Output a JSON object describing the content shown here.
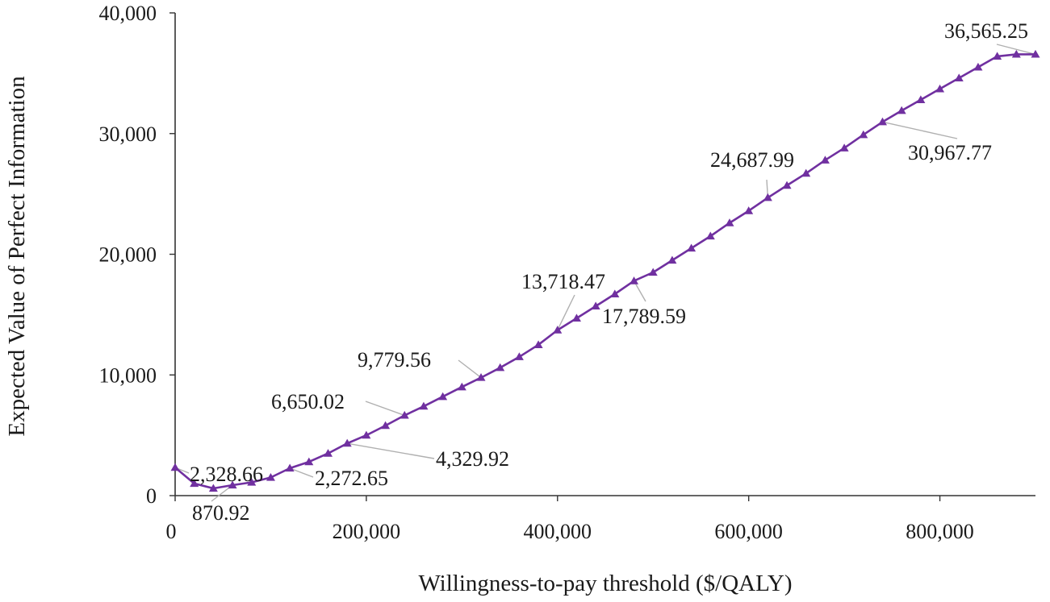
{
  "chart_data": {
    "type": "line",
    "title": "",
    "xlabel": "Willingness-to-pay threshold ($/QALY)",
    "ylabel": "Expected Value of Perfect Information",
    "xlim": [
      0,
      900000
    ],
    "ylim": [
      0,
      40000
    ],
    "x_ticks": [
      0,
      200000,
      400000,
      600000,
      800000
    ],
    "x_tick_labels": [
      "0",
      "200,000",
      "400,000",
      "600,000",
      "800,000"
    ],
    "y_ticks": [
      0,
      10000,
      20000,
      30000,
      40000
    ],
    "y_tick_labels": [
      "0",
      "10,000",
      "20,000",
      "30,000",
      "40,000"
    ],
    "grid": false,
    "legend": "none",
    "series_color": "#7030a0",
    "marker": "triangle",
    "series": [
      {
        "x": [
          0,
          20000,
          40000,
          60000,
          80000,
          100000,
          120000,
          140000,
          160000,
          180000,
          200000,
          220000,
          240000,
          260000,
          280000,
          300000,
          320000,
          340000,
          360000,
          380000,
          400000,
          420000,
          440000,
          460000,
          480000,
          500000,
          520000,
          540000,
          560000,
          580000,
          600000,
          620000,
          640000,
          660000,
          680000,
          700000,
          720000,
          740000,
          760000,
          780000,
          800000,
          820000,
          840000,
          860000,
          880000,
          900000
        ],
        "values": [
          2328.66,
          1000,
          600,
          870.92,
          1100,
          1500,
          2272.65,
          2800,
          3500,
          4329.92,
          5000,
          5800,
          6650.02,
          7400,
          8200,
          9000,
          9779.56,
          10600,
          11500,
          12500,
          13718.47,
          14700,
          15700,
          16700,
          17789.59,
          18500,
          19500,
          20500,
          21500,
          22600,
          23600,
          24687.99,
          25700,
          26700,
          27800,
          28800,
          29900,
          30967.77,
          31900,
          32800,
          33700,
          34600,
          35500,
          36400,
          36565.25,
          36565.25
        ]
      }
    ],
    "annotations": [
      {
        "text": "2,328.66",
        "x": 0,
        "y": 2328.66
      },
      {
        "text": "870.92",
        "x": 60000,
        "y": 870.92
      },
      {
        "text": "2,272.65",
        "x": 120000,
        "y": 2272.65
      },
      {
        "text": "4,329.92",
        "x": 180000,
        "y": 4329.92
      },
      {
        "text": "6,650.02",
        "x": 240000,
        "y": 6650.02
      },
      {
        "text": "9,779.56",
        "x": 320000,
        "y": 9779.56
      },
      {
        "text": "13,718.47",
        "x": 400000,
        "y": 13718.47
      },
      {
        "text": "17,789.59",
        "x": 480000,
        "y": 17789.59
      },
      {
        "text": "24,687.99",
        "x": 620000,
        "y": 24687.99
      },
      {
        "text": "30,967.77",
        "x": 740000,
        "y": 30967.77
      },
      {
        "text": "36,565.25",
        "x": 900000,
        "y": 36565.25
      }
    ]
  }
}
